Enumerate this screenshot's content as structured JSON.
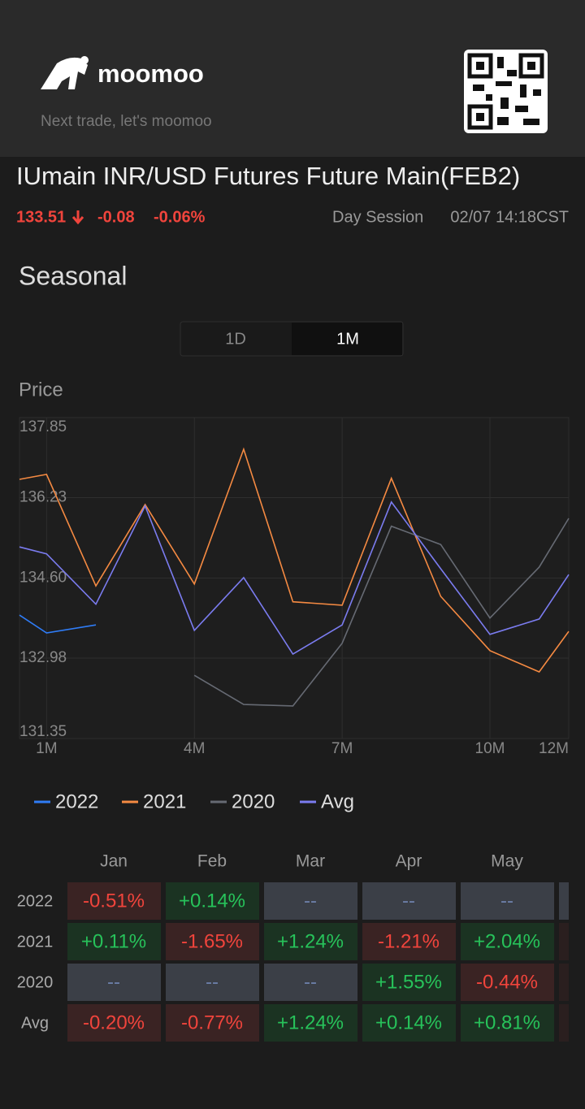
{
  "header": {
    "brand": "moomoo",
    "tagline": "Next trade, let's moomoo"
  },
  "quote": {
    "title": "IUmain  INR/USD Futures Future Main(FEB2)",
    "price": "133.51",
    "change": "-0.08",
    "change_pct": "-0.06%",
    "session": "Day Session",
    "time": "02/07 14:18CST"
  },
  "section_title": "Seasonal",
  "tabs": [
    "1D",
    "1M"
  ],
  "chart_data": {
    "type": "line",
    "y_label": "Price",
    "x": [
      0.45,
      1,
      2,
      3,
      4,
      5,
      6,
      7,
      8,
      9,
      10,
      11,
      11.6
    ],
    "xlim": [
      0.45,
      11.6
    ],
    "xticks": [
      {
        "value": 1,
        "label": "1M"
      },
      {
        "value": 4,
        "label": "4M"
      },
      {
        "value": 7,
        "label": "7M"
      },
      {
        "value": 10,
        "label": "10M"
      },
      {
        "value": 11.6,
        "label": "12M"
      }
    ],
    "ylim": [
      131.35,
      137.85
    ],
    "yticks": [
      131.35,
      132.98,
      {
        "value": 134.6,
        "label": "134.60"
      },
      136.23,
      137.85
    ],
    "grid": true,
    "series": [
      {
        "name": "2022",
        "color": "#2f7cf6",
        "values": [
          133.85,
          133.49,
          133.65,
          null,
          null,
          null,
          null,
          null,
          null,
          null,
          null,
          null,
          null
        ]
      },
      {
        "name": "2021",
        "color": "#f58a42",
        "values": [
          136.6,
          136.7,
          134.44,
          136.09,
          134.48,
          137.21,
          134.12,
          134.05,
          136.62,
          134.23,
          133.13,
          132.7,
          133.52
        ]
      },
      {
        "name": "2020",
        "color": "#666a73",
        "values": [
          null,
          null,
          null,
          null,
          132.63,
          132.04,
          132.01,
          133.28,
          135.65,
          135.28,
          133.79,
          134.82,
          135.81
        ]
      },
      {
        "name": "Avg",
        "color": "#7b7cf0",
        "values": [
          135.23,
          135.09,
          134.07,
          136.06,
          133.54,
          134.61,
          133.06,
          133.65,
          136.14,
          134.79,
          133.46,
          133.77,
          134.67
        ]
      }
    ]
  },
  "table": {
    "columns": [
      "Jan",
      "Feb",
      "Mar",
      "Apr",
      "May"
    ],
    "rows": [
      {
        "label": "2022",
        "cells": [
          {
            "text": "-0.51%",
            "tone": "red"
          },
          {
            "text": "+0.14%",
            "tone": "green"
          },
          {
            "text": "--",
            "tone": "gray"
          },
          {
            "text": "--",
            "tone": "gray"
          },
          {
            "text": "--",
            "tone": "gray"
          }
        ]
      },
      {
        "label": "2021",
        "cells": [
          {
            "text": "+0.11%",
            "tone": "green"
          },
          {
            "text": "-1.65%",
            "tone": "red"
          },
          {
            "text": "+1.24%",
            "tone": "green"
          },
          {
            "text": "-1.21%",
            "tone": "red"
          },
          {
            "text": "+2.04%",
            "tone": "green"
          }
        ]
      },
      {
        "label": "2020",
        "cells": [
          {
            "text": "--",
            "tone": "gray"
          },
          {
            "text": "--",
            "tone": "gray"
          },
          {
            "text": "--",
            "tone": "gray"
          },
          {
            "text": "+1.55%",
            "tone": "green"
          },
          {
            "text": "-0.44%",
            "tone": "red"
          }
        ]
      },
      {
        "label": "Avg",
        "cells": [
          {
            "text": "-0.20%",
            "tone": "red"
          },
          {
            "text": "-0.77%",
            "tone": "red"
          },
          {
            "text": "+1.24%",
            "tone": "green"
          },
          {
            "text": "+0.14%",
            "tone": "green"
          },
          {
            "text": "+0.81%",
            "tone": "green"
          }
        ]
      }
    ]
  }
}
